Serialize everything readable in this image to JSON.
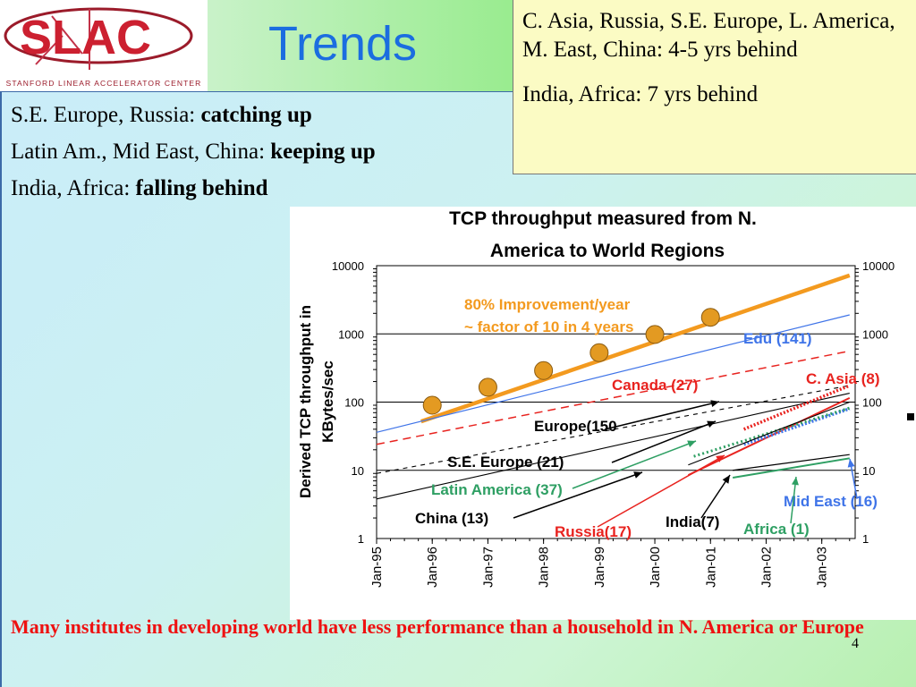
{
  "logo": {
    "text": "SLAC",
    "subtitle": "Stanford Linear Accelerator Center"
  },
  "slide": {
    "title": "Trends",
    "page_number": "4",
    "top_box": {
      "line1": "C. Asia, Russia, S.E. Europe, L. America, M. East, China:  4-5 yrs behind",
      "line2": "India, Africa: 7 yrs behind"
    },
    "status": [
      {
        "label": "S.E. Europe, Russia: ",
        "value": "catching up"
      },
      {
        "label": "Latin Am., Mid East, China: ",
        "value": "keeping up"
      },
      {
        "label": "India, Africa: ",
        "value": "falling behind"
      }
    ],
    "footer": "Many institutes in developing world have less performance than a household in N. America or Europe"
  },
  "colors": {
    "improvement": "#f39a1f",
    "edu": "#3f74e8",
    "canada": "#e8231f",
    "c_asia": "#e8231f",
    "mid_east": "#3f74e8",
    "latin_america": "#2e9f63",
    "africa": "#2e9f63",
    "europe": "#000000",
    "title_blue": "#1b6de0",
    "footer_red": "#ee1111"
  },
  "chart_data": {
    "type": "line",
    "title": "TCP throughput measured from N. America to World Regions",
    "ylabel": "Derived TCP throughput in KBytes/sec",
    "yscale": "log",
    "ylim": [
      1,
      10000
    ],
    "yticks": [
      "1",
      "10",
      "100",
      "1000",
      "10000"
    ],
    "x_ticks": [
      "Jan-95",
      "Jan-96",
      "Jan-97",
      "Jan-98",
      "Jan-99",
      "Jan-00",
      "Jan-01",
      "Jan-02",
      "Jan-03"
    ],
    "annotation": [
      "80% Improvement/year",
      "~ factor of 10 in 4 years"
    ],
    "improvement_points": [
      {
        "x": 1996.0,
        "y": 90
      },
      {
        "x": 1997.0,
        "y": 165
      },
      {
        "x": 1998.0,
        "y": 290
      },
      {
        "x": 1999.0,
        "y": 530
      },
      {
        "x": 2000.0,
        "y": 980
      },
      {
        "x": 2001.0,
        "y": 1750
      }
    ],
    "series": [
      {
        "name": "80% Improvement/year",
        "label_name": "",
        "style": "thick",
        "points": [
          [
            1995.8,
            52
          ],
          [
            2003.5,
            7200
          ]
        ]
      },
      {
        "name": "Edu (141)",
        "style": "solid",
        "points": [
          [
            1995.0,
            36
          ],
          [
            2003.5,
            1900
          ]
        ]
      },
      {
        "name": "Canada (27)",
        "style": "dashed",
        "points": [
          [
            1995.0,
            24
          ],
          [
            2003.5,
            560
          ]
        ]
      },
      {
        "name": "Europe(150",
        "style": "dashed",
        "points": [
          [
            1995.0,
            9
          ],
          [
            2003.5,
            175
          ]
        ]
      },
      {
        "name": "S.E. Europe (21)",
        "style": "solid",
        "points": [
          [
            1995.0,
            3.8
          ],
          [
            2003.5,
            135
          ]
        ]
      },
      {
        "name": "C. Asia (8)",
        "style": "dotted",
        "points": [
          [
            2001.6,
            40
          ],
          [
            2003.5,
            175
          ]
        ]
      },
      {
        "name": "Russia(17)",
        "style": "solid",
        "points": [
          [
            2000.6,
            8.5
          ],
          [
            2003.5,
            115
          ]
        ]
      },
      {
        "name": "Mid East (16)",
        "style": "dotted",
        "points": [
          [
            2001.6,
            24
          ],
          [
            2003.5,
            80
          ]
        ]
      },
      {
        "name": "Latin America (37)",
        "style": "dotted",
        "points": [
          [
            2000.7,
            16
          ],
          [
            2003.5,
            82
          ]
        ]
      },
      {
        "name": "China (13)",
        "style": "solid",
        "points": [
          [
            2000.6,
            12
          ],
          [
            2003.5,
            100
          ]
        ]
      },
      {
        "name": "India(7)",
        "style": "solid",
        "points": [
          [
            2001.4,
            10
          ],
          [
            2003.5,
            17
          ]
        ]
      },
      {
        "name": "Africa (1)",
        "style": "solid",
        "points": [
          [
            2001.4,
            7.8
          ],
          [
            2003.5,
            15
          ]
        ]
      }
    ]
  }
}
